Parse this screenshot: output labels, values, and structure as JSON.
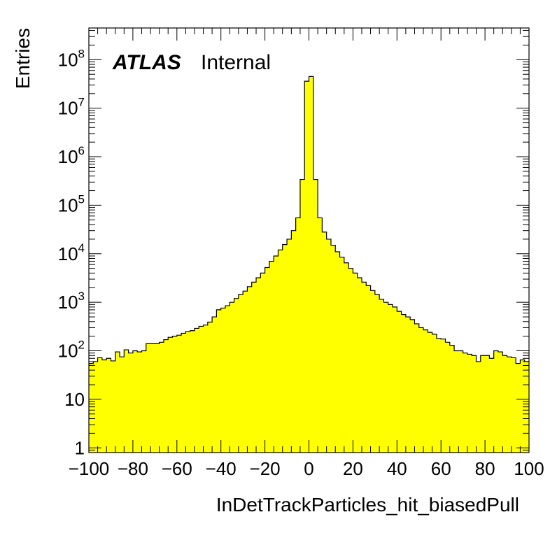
{
  "chart_data": {
    "type": "bar",
    "subtype": "histogram",
    "xlabel": "InDetTrackParticles_hit_biasedPull",
    "ylabel": "Entries",
    "experiment_label": "ATLAS",
    "status_label": "Internal",
    "x_range": [
      -100,
      100
    ],
    "y_range": [
      0.8,
      450000000
    ],
    "y_scale": "log",
    "x_ticks": [
      -100,
      -80,
      -60,
      -40,
      -20,
      0,
      20,
      40,
      60,
      80,
      100
    ],
    "x_tick_labels": [
      "−100",
      "−80",
      "−60",
      "−40",
      "−20",
      "0",
      "20",
      "40",
      "60",
      "80",
      "100"
    ],
    "y_ticks": [
      {
        "value": 1,
        "base": "1",
        "exp": ""
      },
      {
        "value": 10,
        "base": "10",
        "exp": ""
      },
      {
        "value": 100,
        "base": "10",
        "exp": "2"
      },
      {
        "value": 1000,
        "base": "10",
        "exp": "3"
      },
      {
        "value": 10000,
        "base": "10",
        "exp": "4"
      },
      {
        "value": 100000,
        "base": "10",
        "exp": "5"
      },
      {
        "value": 1000000,
        "base": "10",
        "exp": "6"
      },
      {
        "value": 10000000,
        "base": "10",
        "exp": "7"
      },
      {
        "value": 100000000,
        "base": "10",
        "exp": "8"
      }
    ],
    "bin_width": 2,
    "bin_low_edge": -100,
    "values": [
      55,
      60,
      72,
      65,
      70,
      62,
      95,
      75,
      105,
      90,
      100,
      95,
      100,
      140,
      140,
      140,
      150,
      170,
      190,
      200,
      210,
      230,
      250,
      260,
      290,
      320,
      340,
      390,
      500,
      700,
      760,
      850,
      1000,
      1200,
      1450,
      1700,
      2100,
      2600,
      3200,
      4000,
      5200,
      7000,
      9000,
      12000,
      15500,
      20000,
      30000,
      55000,
      340000,
      36000000,
      45000000,
      340000,
      55000,
      28000,
      20000,
      15000,
      11000,
      8500,
      6500,
      5000,
      4000,
      3200,
      2600,
      2200,
      1750,
      1450,
      1150,
      1000,
      900,
      800,
      650,
      560,
      500,
      440,
      360,
      300,
      270,
      240,
      220,
      180,
      175,
      150,
      130,
      100,
      100,
      90,
      85,
      80,
      60,
      80,
      80,
      70,
      100,
      95,
      80,
      75,
      72,
      55,
      65,
      60
    ],
    "fill_color": "#ffff00",
    "line_color": "#000000",
    "grid": false,
    "legend": "none"
  }
}
